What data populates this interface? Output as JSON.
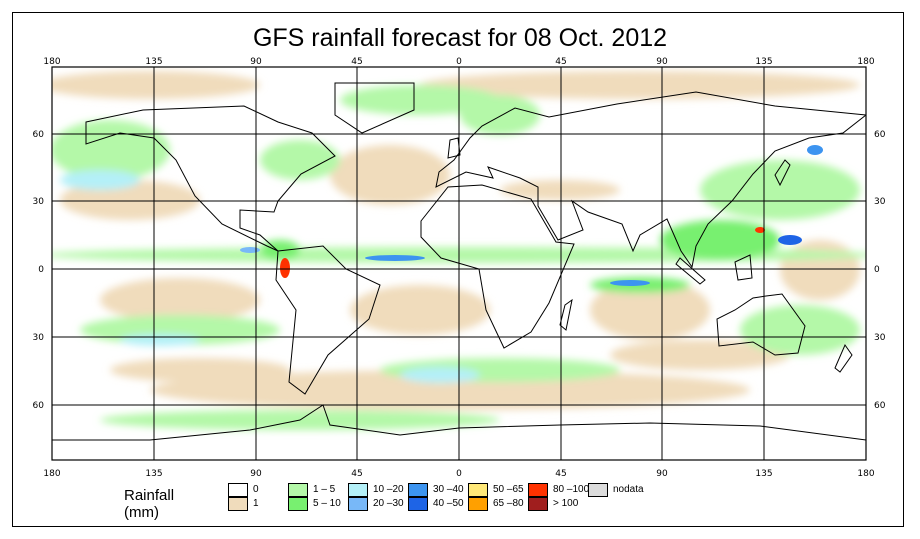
{
  "title": "GFS rainfall forecast for 08 Oct. 2012",
  "lon_labels": [
    "180",
    "135",
    "90",
    "45",
    "0",
    "45",
    "90",
    "135",
    "180"
  ],
  "lat_labels": [
    "60",
    "30",
    "0",
    "30",
    "60"
  ],
  "legend": {
    "title": "Rainfall (mm)",
    "items": [
      {
        "label": "0",
        "color": "#ffffff"
      },
      {
        "label": "1",
        "color": "#f0dcbc"
      },
      {
        "label": "1 – 5",
        "color": "#b4f8a8"
      },
      {
        "label": "5 – 10",
        "color": "#78f070"
      },
      {
        "label": "10 –20",
        "color": "#b4f0f8"
      },
      {
        "label": "20 –30",
        "color": "#78b8f8"
      },
      {
        "label": "30 –40",
        "color": "#3c94f0"
      },
      {
        "label": "40 –50",
        "color": "#1e64e6"
      },
      {
        "label": "50 –65",
        "color": "#ffe878"
      },
      {
        "label": "65 –80",
        "color": "#ffa000"
      },
      {
        "label": "80 –100",
        "color": "#ff3200"
      },
      {
        "label": "> 100",
        "color": "#a01e1e"
      },
      {
        "label": "nodata",
        "color": "#dcdcdc"
      }
    ]
  }
}
